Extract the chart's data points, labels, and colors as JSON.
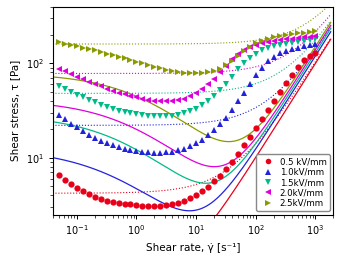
{
  "xlabel": "Shear rate, γ̇ [s⁻¹]",
  "ylabel": "Shear stress, τ [Pa]",
  "xlim": [
    0.04,
    2000
  ],
  "ylim": [
    2.5,
    400
  ],
  "series": [
    {
      "label": "0.5 kV/mm",
      "color": "#e8001a",
      "marker": "o",
      "dot_x": [
        0.05,
        0.063,
        0.079,
        0.1,
        0.126,
        0.158,
        0.2,
        0.251,
        0.316,
        0.398,
        0.501,
        0.631,
        0.794,
        1.0,
        1.259,
        1.585,
        1.995,
        2.512,
        3.162,
        3.981,
        5.012,
        6.31,
        7.943,
        10.0,
        12.59,
        15.85,
        19.95,
        25.12,
        31.62,
        39.81,
        50.12,
        63.1,
        79.43,
        100.0,
        125.9,
        158.5,
        199.5,
        251.2,
        316.2,
        398.1,
        501.2,
        631.0,
        794.3,
        1000.0
      ],
      "dot_y": [
        6.5,
        5.8,
        5.2,
        4.8,
        4.4,
        4.1,
        3.85,
        3.65,
        3.5,
        3.4,
        3.3,
        3.25,
        3.2,
        3.15,
        3.1,
        3.1,
        3.1,
        3.1,
        3.15,
        3.2,
        3.3,
        3.5,
        3.7,
        4.0,
        4.4,
        4.9,
        5.6,
        6.4,
        7.5,
        9.0,
        11.0,
        13.5,
        16.5,
        20.5,
        25.5,
        32.0,
        40.0,
        50.0,
        62.0,
        76.0,
        92.0,
        108.0,
        120.0,
        130.0
      ],
      "fit_tau0": 3.2,
      "fit_k": 0.25,
      "fit_n": 0.55,
      "fit_eta": 0.1,
      "dot_tau0": 4.2
    },
    {
      "label": "1.0kV/mm",
      "color": "#2222dd",
      "marker": "^",
      "dot_x": [
        0.05,
        0.063,
        0.079,
        0.1,
        0.126,
        0.158,
        0.2,
        0.251,
        0.316,
        0.398,
        0.501,
        0.631,
        0.794,
        1.0,
        1.259,
        1.585,
        1.995,
        2.512,
        3.162,
        3.981,
        5.012,
        6.31,
        7.943,
        10.0,
        12.59,
        15.85,
        19.95,
        25.12,
        31.62,
        39.81,
        50.12,
        63.1,
        79.43,
        100.0,
        125.9,
        158.5,
        199.5,
        251.2,
        316.2,
        398.1,
        501.2,
        631.0,
        794.3,
        1000.0
      ],
      "dot_y": [
        28.0,
        25.5,
        23.0,
        21.0,
        19.0,
        17.5,
        16.2,
        15.2,
        14.3,
        13.6,
        13.0,
        12.5,
        12.1,
        11.8,
        11.5,
        11.4,
        11.3,
        11.3,
        11.4,
        11.6,
        12.0,
        12.5,
        13.2,
        14.2,
        15.5,
        17.2,
        19.5,
        22.5,
        26.5,
        32.0,
        39.5,
        49.0,
        61.0,
        75.0,
        90.0,
        105.0,
        118.0,
        128.0,
        136.0,
        142.0,
        147.0,
        152.0,
        156.0,
        160.0
      ],
      "fit_tau0": 12.5,
      "fit_k": 0.4,
      "fit_n": 0.6,
      "fit_eta": 0.12,
      "dot_tau0": 22.0
    },
    {
      "label": "1.5kV/mm",
      "color": "#00bb88",
      "marker": "v",
      "dot_x": [
        0.05,
        0.063,
        0.079,
        0.1,
        0.126,
        0.158,
        0.2,
        0.251,
        0.316,
        0.398,
        0.501,
        0.631,
        0.794,
        1.0,
        1.259,
        1.585,
        1.995,
        2.512,
        3.162,
        3.981,
        5.012,
        6.31,
        7.943,
        10.0,
        12.59,
        15.85,
        19.95,
        25.12,
        31.62,
        39.81,
        50.12,
        63.1,
        79.43,
        100.0,
        125.9,
        158.5,
        199.5,
        251.2,
        316.2,
        398.1,
        501.2,
        631.0,
        794.3,
        1000.0
      ],
      "dot_y": [
        58.0,
        54.0,
        50.0,
        46.5,
        43.5,
        41.0,
        38.5,
        36.5,
        34.5,
        33.0,
        31.5,
        30.5,
        29.5,
        28.8,
        28.2,
        27.7,
        27.5,
        27.4,
        27.5,
        27.8,
        28.5,
        29.5,
        31.0,
        33.0,
        36.0,
        40.0,
        45.0,
        52.0,
        61.0,
        72.0,
        86.0,
        101.0,
        115.0,
        127.0,
        137.0,
        145.0,
        151.0,
        156.0,
        160.0,
        164.0,
        168.0,
        172.0,
        176.0,
        180.0
      ],
      "fit_tau0": 28.5,
      "fit_k": 0.6,
      "fit_n": 0.62,
      "fit_eta": 0.13,
      "dot_tau0": 48.0
    },
    {
      "label": "2.0kV/mm",
      "color": "#dd00dd",
      "marker": "<",
      "dot_x": [
        0.05,
        0.063,
        0.079,
        0.1,
        0.126,
        0.158,
        0.2,
        0.251,
        0.316,
        0.398,
        0.501,
        0.631,
        0.794,
        1.0,
        1.259,
        1.585,
        1.995,
        2.512,
        3.162,
        3.981,
        5.012,
        6.31,
        7.943,
        10.0,
        12.59,
        15.85,
        19.95,
        25.12,
        31.62,
        39.81,
        50.12,
        63.1,
        79.43,
        100.0,
        125.9,
        158.5,
        199.5,
        251.2,
        316.2,
        398.1,
        501.2,
        631.0,
        794.3,
        1000.0
      ],
      "dot_y": [
        88.0,
        82.0,
        77.0,
        72.0,
        68.0,
        64.0,
        60.0,
        57.0,
        54.0,
        51.5,
        49.0,
        47.0,
        45.0,
        43.5,
        42.0,
        41.0,
        40.0,
        39.5,
        39.5,
        39.8,
        40.5,
        42.0,
        44.5,
        48.0,
        53.0,
        60.0,
        69.0,
        80.0,
        94.0,
        110.0,
        125.0,
        138.0,
        149.0,
        157.0,
        163.0,
        168.0,
        172.0,
        176.0,
        179.0,
        182.0,
        185.0,
        188.0,
        191.0,
        194.0
      ],
      "fit_tau0": 41.0,
      "fit_k": 0.9,
      "fit_n": 0.62,
      "fit_eta": 0.14,
      "dot_tau0": 78.0
    },
    {
      "label": "2.5kV/mm",
      "color": "#8a9a00",
      "marker": ">",
      "dot_x": [
        0.05,
        0.063,
        0.079,
        0.1,
        0.126,
        0.158,
        0.2,
        0.251,
        0.316,
        0.398,
        0.501,
        0.631,
        0.794,
        1.0,
        1.259,
        1.585,
        1.995,
        2.512,
        3.162,
        3.981,
        5.012,
        6.31,
        7.943,
        10.0,
        12.59,
        15.85,
        19.95,
        25.12,
        31.62,
        39.81,
        50.12,
        63.1,
        79.43,
        100.0,
        125.9,
        158.5,
        199.5,
        251.2,
        316.2,
        398.1,
        501.2,
        631.0,
        794.3,
        1000.0
      ],
      "dot_y": [
        168.0,
        162.0,
        157.0,
        152.0,
        147.0,
        142.0,
        137.0,
        132.0,
        127.0,
        122.0,
        117.0,
        113.0,
        108.0,
        104.0,
        100.0,
        96.0,
        92.0,
        88.5,
        85.5,
        83.0,
        81.0,
        79.5,
        78.5,
        78.0,
        78.5,
        80.0,
        83.0,
        88.0,
        96.0,
        107.0,
        120.0,
        135.0,
        150.0,
        163.0,
        174.0,
        182.0,
        189.0,
        194.0,
        199.0,
        203.0,
        207.0,
        211.0,
        216.0,
        221.0
      ],
      "fit_tau0": 79.0,
      "fit_k": 1.5,
      "fit_n": 0.63,
      "fit_eta": 0.15,
      "dot_tau0": 160.0
    }
  ],
  "legend_labels": [
    "0.5 kV/mm",
    "1.0kV/mm",
    "1.5kV/mm",
    "2.0kV/mm",
    "2.5kV/mm"
  ],
  "legend_colors": [
    "#e8001a",
    "#2222dd",
    "#00bb88",
    "#dd00dd",
    "#8a9a00"
  ],
  "legend_markers": [
    "o",
    "^",
    "v",
    "<",
    ">"
  ]
}
